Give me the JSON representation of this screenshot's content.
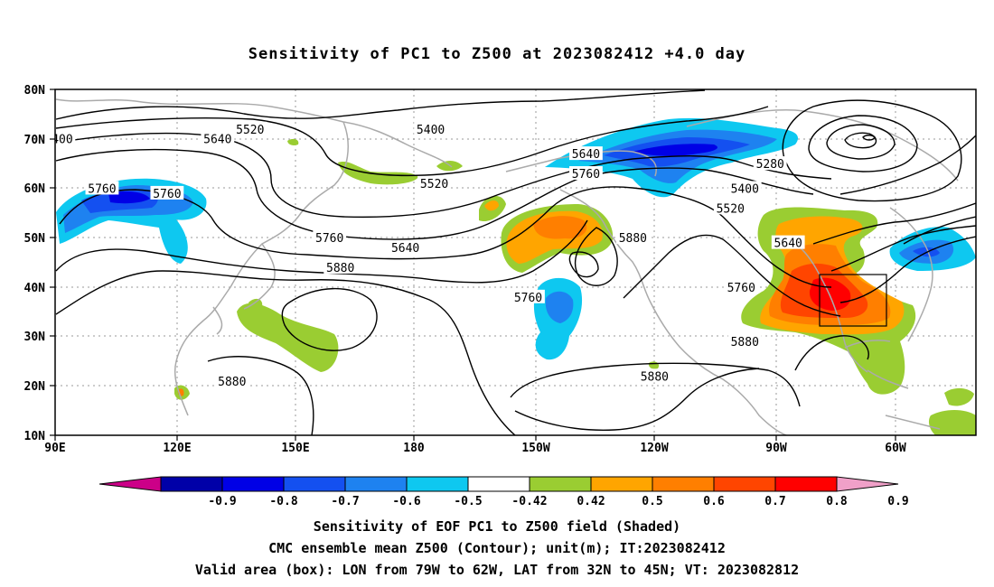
{
  "title": "Sensitivity of PC1 to Z500 at 2023082412 +4.0 day",
  "axes": {
    "lat_ticks": [
      "80N",
      "70N",
      "60N",
      "50N",
      "40N",
      "30N",
      "20N",
      "10N"
    ],
    "lon_ticks": [
      "90E",
      "120E",
      "150E",
      "180",
      "150W",
      "120W",
      "90W",
      "60W"
    ]
  },
  "contour_labels": [
    {
      "text": "400",
      "at": "70N 92E"
    },
    {
      "text": "5520",
      "at": "72N 144E"
    },
    {
      "text": "5640",
      "at": "70N 135E"
    },
    {
      "text": "5400",
      "at": "72N 166W"
    },
    {
      "text": "5760",
      "at": "60N 103E"
    },
    {
      "text": "5760",
      "at": "59N 121E"
    },
    {
      "text": "5520",
      "at": "61N 165W"
    },
    {
      "text": "5640",
      "at": "67N 123W"
    },
    {
      "text": "5760",
      "at": "63N 123W"
    },
    {
      "text": "5280",
      "at": "65N 72W"
    },
    {
      "text": "5400",
      "at": "60N 79W"
    },
    {
      "text": "5520",
      "at": "56N 83W"
    },
    {
      "text": "5640",
      "at": "49N 67W"
    },
    {
      "text": "5760",
      "at": "50N 166E"
    },
    {
      "text": "5640",
      "at": "48N 173W"
    },
    {
      "text": "5880",
      "at": "50N 110W"
    },
    {
      "text": "5880",
      "at": "44N 169E"
    },
    {
      "text": "5760",
      "at": "38N 139W"
    },
    {
      "text": "5760",
      "at": "40N 80W"
    },
    {
      "text": "5880",
      "at": "29N 79W"
    },
    {
      "text": "5880",
      "at": "22N 104W"
    },
    {
      "text": "5880",
      "at": "21N 139E"
    }
  ],
  "colorbar": {
    "labels": [
      "-0.9",
      "-0.8",
      "-0.7",
      "-0.6",
      "-0.5",
      "-0.42",
      "0.42",
      "0.5",
      "0.6",
      "0.7",
      "0.8",
      "0.9"
    ],
    "colors": [
      "#0000a8",
      "#0000e6",
      "#1450f0",
      "#1e82f0",
      "#0ec8f0",
      "#ffffff",
      "#9acd32",
      "#ffa500",
      "#ff7f00",
      "#ff4500",
      "#ff0000"
    ],
    "low_end_color": "#cc0088",
    "high_end_color": "#f0a0c8"
  },
  "valid_box": {
    "lon_min": "79W",
    "lon_max": "62W",
    "lat_min": "32N",
    "lat_max": "45N"
  },
  "captions": {
    "line1": "Sensitivity of EOF PC1 to Z500 field (Shaded)",
    "line2": "CMC ensemble mean Z500 (Contour); unit(m); IT:2023082412",
    "line3": "Valid area (box): LON from 79W to 62W, LAT from 32N to 45N; VT: 2023082812"
  }
}
